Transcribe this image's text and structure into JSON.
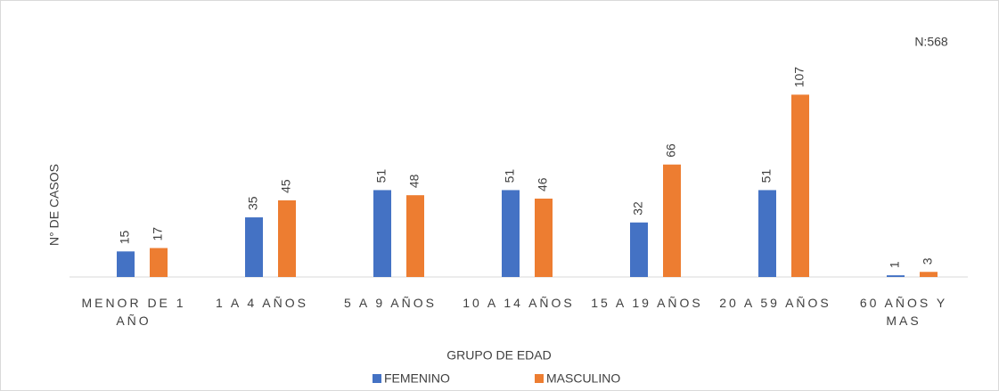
{
  "chart_data": {
    "type": "bar",
    "categories": [
      "MENOR DE 1 AÑO",
      "1 A 4 AÑOS",
      "5 A 9 AÑOS",
      "10 A 14 AÑOS",
      "15 A 19 AÑOS",
      "20 A 59 AÑOS",
      "60 AÑOS Y MAS"
    ],
    "series": [
      {
        "name": "FEMENINO",
        "color": "#4472c4",
        "values": [
          15,
          35,
          51,
          51,
          32,
          51,
          1
        ]
      },
      {
        "name": "MASCULINO",
        "color": "#ed7d31",
        "values": [
          17,
          45,
          48,
          46,
          66,
          107,
          3
        ]
      }
    ],
    "ylim": [
      0,
      115
    ],
    "x_label": "GRUPO DE EDAD",
    "y_label": "N° DE CASOS",
    "annotation": "N:568",
    "legend": "bottom"
  }
}
